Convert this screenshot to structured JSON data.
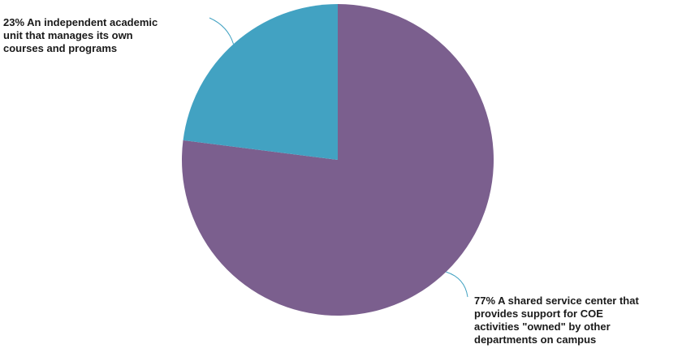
{
  "chart_data": {
    "type": "pie",
    "slices": [
      {
        "pct": 77,
        "label_lines": [
          "77% A shared service center that",
          "provides support for COE",
          "activities \"owned\" by other",
          "departments on campus"
        ],
        "color": "#7b5f8e"
      },
      {
        "pct": 23,
        "label_lines": [
          "23% An independent academic",
          "unit that manages its own",
          "courses and programs"
        ],
        "color": "#42a2c2"
      }
    ],
    "leader_color": "#42a2c2",
    "legend": "none"
  }
}
